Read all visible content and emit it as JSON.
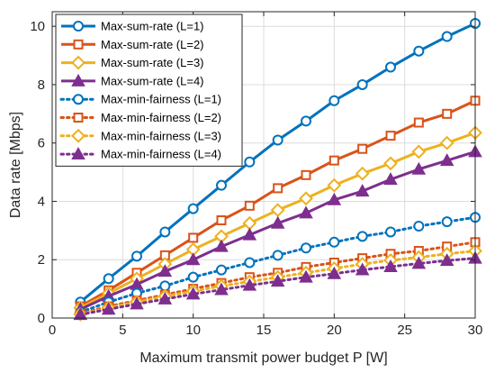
{
  "chart_data": {
    "type": "line",
    "title": "",
    "xlabel": "Maximum transmit power budget P [W]",
    "ylabel": "Data rate [Mbps]",
    "xlim": [
      0,
      30
    ],
    "ylim": [
      0,
      10.5
    ],
    "xticks": [
      0,
      5,
      10,
      15,
      20,
      25,
      30
    ],
    "yticks": [
      0,
      2,
      4,
      6,
      8,
      10
    ],
    "grid": true,
    "legend_position": "top-left",
    "x": [
      2,
      4,
      6,
      8,
      10,
      12,
      14,
      16,
      18,
      20,
      22,
      24,
      26,
      28,
      30
    ],
    "series": [
      {
        "name": "Max-sum-rate (L=1)",
        "color": "#0072BD",
        "line": "solid",
        "marker": "circle",
        "values": [
          0.55,
          1.35,
          2.12,
          2.95,
          3.75,
          4.55,
          5.35,
          6.1,
          6.75,
          7.45,
          8.0,
          8.6,
          9.15,
          9.65,
          10.1
        ]
      },
      {
        "name": "Max-sum-rate (L=2)",
        "color": "#D95319",
        "line": "solid",
        "marker": "square",
        "values": [
          0.4,
          0.95,
          1.55,
          2.15,
          2.75,
          3.35,
          3.85,
          4.45,
          4.9,
          5.4,
          5.8,
          6.25,
          6.7,
          7.0,
          7.45
        ]
      },
      {
        "name": "Max-sum-rate (L=3)",
        "color": "#EDB120",
        "line": "solid",
        "marker": "diamond",
        "values": [
          0.35,
          0.85,
          1.35,
          1.85,
          2.35,
          2.8,
          3.25,
          3.7,
          4.1,
          4.55,
          4.95,
          5.3,
          5.7,
          6.0,
          6.35
        ]
      },
      {
        "name": "Max-sum-rate (L=4)",
        "color": "#7E2F8E",
        "line": "solid",
        "marker": "triangle",
        "values": [
          0.3,
          0.75,
          1.15,
          1.6,
          2.0,
          2.45,
          2.85,
          3.25,
          3.6,
          4.05,
          4.35,
          4.75,
          5.1,
          5.4,
          5.7
        ]
      },
      {
        "name": "Max-min-fairness (L=1)",
        "color": "#0072BD",
        "line": "dotted",
        "marker": "circle",
        "values": [
          0.2,
          0.55,
          0.85,
          1.1,
          1.4,
          1.65,
          1.9,
          2.15,
          2.4,
          2.6,
          2.8,
          2.95,
          3.15,
          3.3,
          3.45
        ]
      },
      {
        "name": "Max-min-fairness (L=2)",
        "color": "#D95319",
        "line": "dotted",
        "marker": "square",
        "values": [
          0.15,
          0.4,
          0.6,
          0.8,
          1.0,
          1.2,
          1.4,
          1.55,
          1.75,
          1.9,
          2.05,
          2.2,
          2.3,
          2.45,
          2.6
        ]
      },
      {
        "name": "Max-min-fairness (L=3)",
        "color": "#EDB120",
        "line": "dotted",
        "marker": "diamond",
        "values": [
          0.13,
          0.35,
          0.55,
          0.75,
          0.92,
          1.1,
          1.25,
          1.4,
          1.55,
          1.7,
          1.85,
          1.98,
          2.08,
          2.2,
          2.3
        ]
      },
      {
        "name": "Max-min-fairness (L=4)",
        "color": "#7E2F8E",
        "line": "dotted",
        "marker": "triangle",
        "values": [
          0.12,
          0.3,
          0.48,
          0.65,
          0.82,
          0.97,
          1.12,
          1.26,
          1.4,
          1.52,
          1.65,
          1.76,
          1.87,
          1.97,
          2.05
        ]
      }
    ]
  }
}
